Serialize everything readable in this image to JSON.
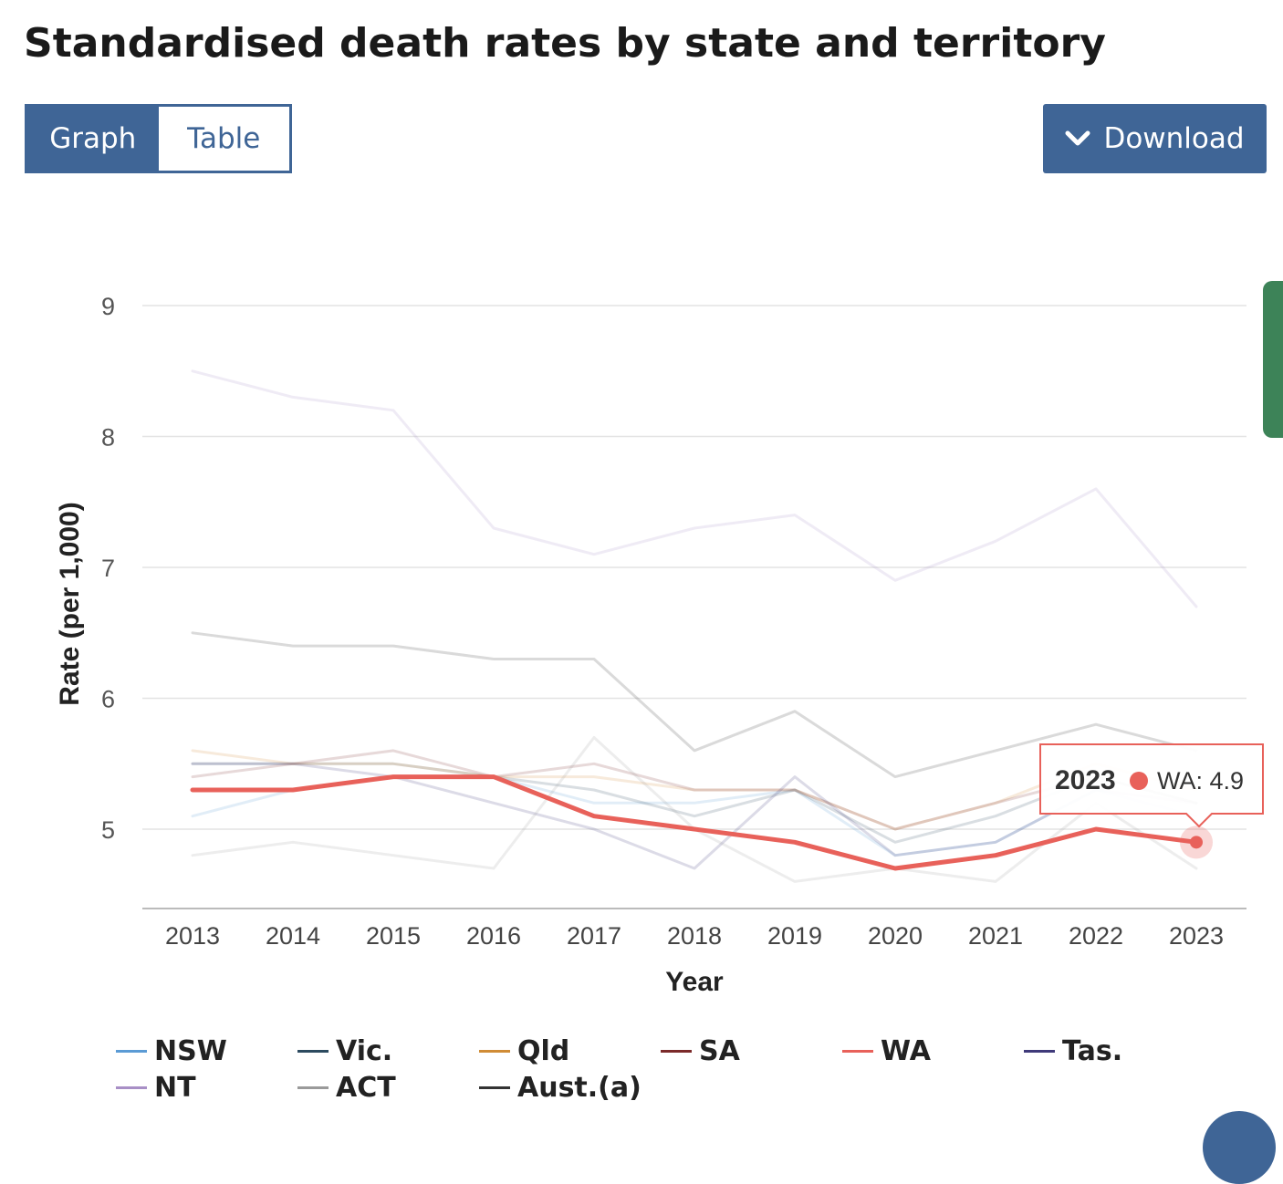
{
  "page": {
    "title": "Standardised death rates by state and territory"
  },
  "toolbar": {
    "graph_label": "Graph",
    "table_label": "Table",
    "download_label": "Download",
    "download_icon": "chevron-down-icon"
  },
  "tooltip": {
    "year": "2023",
    "series": "WA",
    "value_text": "WA: 4.9",
    "color": "#e8615a"
  },
  "chart_data": {
    "type": "line",
    "title": "",
    "xlabel": "Year",
    "ylabel": "Rate (per 1,000)",
    "ylim": [
      4.4,
      9.0
    ],
    "yticks": [
      5,
      6,
      7,
      8,
      9
    ],
    "grid": true,
    "legend_position": "bottom",
    "x": [
      "2013",
      "2014",
      "2015",
      "2016",
      "2017",
      "2018",
      "2019",
      "2020",
      "2021",
      "2022",
      "2023"
    ],
    "highlighted_series": "WA",
    "series": [
      {
        "name": "NSW",
        "color": "#5b9bd5",
        "values": [
          5.1,
          5.3,
          5.4,
          5.4,
          5.2,
          5.2,
          5.3,
          4.8,
          4.9,
          5.3,
          5.1
        ]
      },
      {
        "name": "Vic.",
        "color": "#2c4a5f",
        "values": [
          5.5,
          5.5,
          5.5,
          5.4,
          5.3,
          5.1,
          5.3,
          4.9,
          5.1,
          5.4,
          5.2
        ]
      },
      {
        "name": "Qld",
        "color": "#d08c35",
        "values": [
          5.6,
          5.5,
          5.5,
          5.4,
          5.4,
          5.3,
          5.3,
          5.0,
          5.2,
          5.5,
          5.3
        ]
      },
      {
        "name": "SA",
        "color": "#7b2a2a",
        "values": [
          5.4,
          5.5,
          5.6,
          5.4,
          5.5,
          5.3,
          5.3,
          5.0,
          5.2,
          5.4,
          5.2
        ]
      },
      {
        "name": "WA",
        "color": "#e8615a",
        "values": [
          5.3,
          5.3,
          5.4,
          5.4,
          5.1,
          5.0,
          4.9,
          4.7,
          4.8,
          5.0,
          4.9
        ]
      },
      {
        "name": "Tas.",
        "color": "#3f3a7a",
        "values": [
          5.5,
          5.5,
          5.4,
          5.2,
          5.0,
          4.7,
          5.4,
          4.8,
          4.9,
          5.3,
          5.2
        ]
      },
      {
        "name": "NT",
        "color": "#a88fc6",
        "values": [
          8.5,
          8.3,
          8.2,
          7.3,
          7.1,
          7.3,
          7.4,
          6.9,
          7.2,
          7.6,
          6.7
        ]
      },
      {
        "name": "ACT",
        "color": "#9a9a9a",
        "values": [
          4.8,
          4.9,
          4.8,
          4.7,
          5.7,
          5.0,
          4.6,
          4.7,
          4.6,
          5.2,
          4.7
        ]
      },
      {
        "name": "Aust.(a)",
        "color": "#333333",
        "values": [
          6.5,
          6.4,
          6.4,
          6.3,
          6.3,
          5.6,
          5.9,
          5.4,
          5.6,
          5.8,
          5.6
        ]
      }
    ]
  }
}
